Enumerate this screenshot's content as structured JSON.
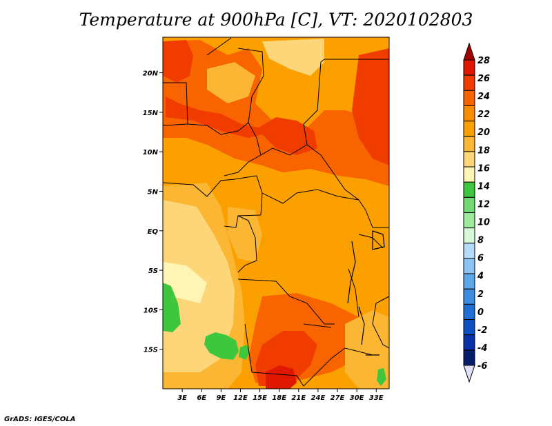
{
  "title": "Temperature at 900hPa [C], VT: 2020102803",
  "footer": "GrADS: IGES/COLA",
  "map": {
    "lat_labels": [
      "20N",
      "15N",
      "10N",
      "5N",
      "EQ",
      "5S",
      "10S",
      "15S"
    ],
    "lat_values": [
      20,
      15,
      10,
      5,
      0,
      -5,
      -10,
      -15
    ],
    "lon_labels": [
      "3E",
      "6E",
      "9E",
      "12E",
      "15E",
      "18E",
      "21E",
      "24E",
      "27E",
      "30E",
      "33E"
    ],
    "lon_values": [
      3,
      6,
      9,
      12,
      15,
      18,
      21,
      24,
      27,
      30,
      33
    ],
    "lon_range": [
      0,
      35
    ],
    "lat_range": [
      -20,
      24.5
    ]
  },
  "colorbar": {
    "labels": [
      "28",
      "26",
      "24",
      "22",
      "20",
      "18",
      "16",
      "14",
      "12",
      "10",
      "8",
      "6",
      "4",
      "2",
      "0",
      "-2",
      "-4",
      "-6"
    ],
    "colors": [
      "#e11800",
      "#f13c00",
      "#f86400",
      "#fa8c00",
      "#fca000",
      "#fbb634",
      "#fdd67a",
      "#fef4b4",
      "#3ec73e",
      "#72d872",
      "#a0eaa0",
      "#d6f8d6",
      "#b4dcfa",
      "#8ec4f4",
      "#5ea8ea",
      "#3c8ce0",
      "#1e6ed8",
      "#0c50c4",
      "#0830a8",
      "#081c6c"
    ],
    "top_arrow_color": "#a50000",
    "bottom_arrow_color": "#e0e0fa"
  },
  "palette": {
    "t28": "#e11800",
    "t26": "#f13c00",
    "t24": "#f86400",
    "t22": "#fa8c00",
    "t20": "#fca000",
    "t18": "#fbb634",
    "t16": "#fdd67a",
    "t14": "#fef4b4",
    "green": "#3ec73e"
  }
}
